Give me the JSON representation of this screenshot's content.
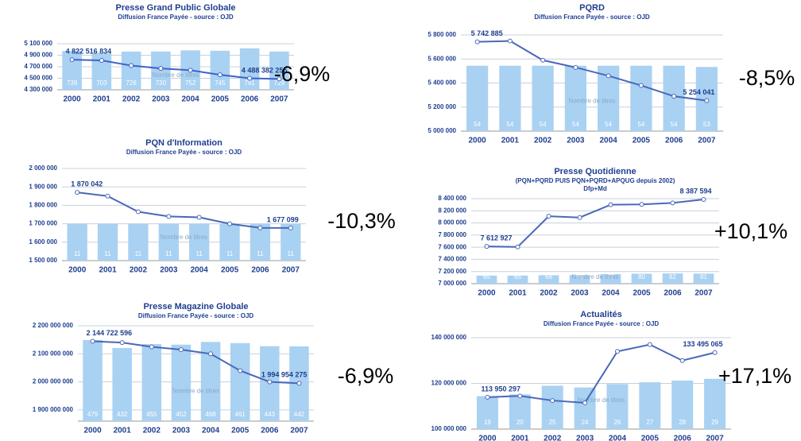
{
  "chart_data": [
    {
      "type": "bar-line",
      "title": "Presse Grand Public Globale",
      "subtitle": "Diffusion France Payée - source : OJD",
      "categories": [
        "2000",
        "2001",
        "2002",
        "2003",
        "2004",
        "2005",
        "2006",
        "2007"
      ],
      "series": [
        {
          "name": "Nombre de titres",
          "color": "#a9d1f2",
          "values": [
            739,
            703,
            728,
            730,
            752,
            745,
            791,
            729
          ]
        },
        {
          "color": "#3e63c8",
          "values": [
            4822516,
            4810000,
            4720000,
            4670000,
            4640000,
            4560000,
            4500000,
            4488382
          ]
        }
      ],
      "annotations": [
        "4 822 516 834",
        "4 488 382 255"
      ],
      "change": "-6,9%",
      "ylim": [
        4300000,
        5100000
      ],
      "yticks": [
        {
          "value": 4300000,
          "label": "4 300 000"
        },
        {
          "value": 4500000,
          "label": "4 500 000"
        },
        {
          "value": 4700000,
          "label": "4 700 000"
        },
        {
          "value": 4900000,
          "label": "4 900 000"
        },
        {
          "value": 5100000,
          "label": "5 100 000"
        }
      ],
      "grid": true
    },
    {
      "type": "bar-line",
      "title": "PQRD",
      "subtitle": "Diffusion France Payée - source : OJD",
      "categories": [
        "2000",
        "2001",
        "2002",
        "2003",
        "2004",
        "2005",
        "2006",
        "2007"
      ],
      "series": [
        {
          "name": "Nombre de titres",
          "color": "#a9d1f2",
          "values": [
            54,
            54,
            54,
            54,
            54,
            54,
            54,
            53
          ]
        },
        {
          "color": "#4a68b8",
          "values": [
            5742885,
            5750000,
            5590000,
            5530000,
            5460000,
            5380000,
            5290000,
            5254041
          ]
        }
      ],
      "annotations": [
        "5 742 885",
        "5 254 041"
      ],
      "change": "-8,5%",
      "ylim": [
        5000000,
        5800000
      ],
      "yticks": [
        {
          "value": 5000000,
          "label": "5 000 000"
        },
        {
          "value": 5200000,
          "label": "5 200 000"
        },
        {
          "value": 5400000,
          "label": "5 400 000"
        },
        {
          "value": 5600000,
          "label": "5 600 000"
        },
        {
          "value": 5800000,
          "label": "5 800 000"
        }
      ],
      "grid": true
    },
    {
      "type": "bar-line",
      "title": "PQN d'Information",
      "subtitle": "Diffusion France Payée - source : OJD",
      "categories": [
        "2000",
        "2001",
        "2002",
        "2003",
        "2004",
        "2005",
        "2006",
        "2007"
      ],
      "series": [
        {
          "name": "Nombre de titres",
          "color": "#a9d1f2",
          "values": [
            11,
            11,
            11,
            11,
            11,
            11,
            11,
            11
          ]
        },
        {
          "color": "#4a68b8",
          "values": [
            1870042,
            1850000,
            1765000,
            1740000,
            1735000,
            1700000,
            1678000,
            1677099
          ]
        }
      ],
      "annotations": [
        "1 870 042",
        "1 677 099"
      ],
      "change": "-10,3%",
      "ylim": [
        1500000,
        2000000
      ],
      "yticks": [
        {
          "value": 1500000,
          "label": "1 500 000"
        },
        {
          "value": 1600000,
          "label": "1 600 000"
        },
        {
          "value": 1700000,
          "label": "1 700 000"
        },
        {
          "value": 1800000,
          "label": "1 800 000"
        },
        {
          "value": 1900000,
          "label": "1 900 000"
        },
        {
          "value": 2000000,
          "label": "2 000 000"
        }
      ],
      "grid": true
    },
    {
      "type": "bar-line",
      "title": "Presse Quotidienne",
      "subtitle": "(PQN+PQRD PUIS PQN+PQRD+APQUG depuis 2002)",
      "note": "Dfp+Md",
      "categories": [
        "2000",
        "2001",
        "2002",
        "2003",
        "2004",
        "2005",
        "2006",
        "2007"
      ],
      "series": [
        {
          "name": "Nombre de titres",
          "color": "#a9d1f2",
          "values": [
            65,
            65,
            68,
            69,
            77,
            80,
            82,
            81
          ]
        },
        {
          "color": "#4a68b8",
          "values": [
            7612927,
            7605000,
            8110000,
            8090000,
            8300000,
            8305000,
            8330000,
            8387594
          ]
        }
      ],
      "annotations": [
        "7 612 927",
        "8 387 594"
      ],
      "change": "+10,1%",
      "ylim": [
        7000000,
        8400000
      ],
      "yticks": [
        {
          "value": 7000000,
          "label": "7 000 000"
        },
        {
          "value": 7200000,
          "label": "7 200 000"
        },
        {
          "value": 7400000,
          "label": "7 400 000"
        },
        {
          "value": 7600000,
          "label": "7 600 000"
        },
        {
          "value": 7800000,
          "label": "7 800 000"
        },
        {
          "value": 8000000,
          "label": "8 000 000"
        },
        {
          "value": 8200000,
          "label": "8 200 000"
        },
        {
          "value": 8400000,
          "label": "8 400 000"
        }
      ],
      "grid": true
    },
    {
      "type": "bar-line",
      "title": "Presse Magazine Globale",
      "subtitle": "Diffusion France Payée - source : OJD",
      "categories": [
        "2000",
        "2001",
        "2002",
        "2003",
        "2004",
        "2005",
        "2006",
        "2007"
      ],
      "series": [
        {
          "name": "Nombre de titres",
          "color": "#a9d1f2",
          "values": [
            479,
            432,
            455,
            452,
            468,
            461,
            443,
            442
          ]
        },
        {
          "color": "#4a68b8",
          "values": [
            2144722596,
            2140000000,
            2125000000,
            2115000000,
            2100000000,
            2040000000,
            2000000000,
            1994954275
          ]
        }
      ],
      "annotations": [
        "2 144 722 596",
        "1 994 954 275"
      ],
      "change": "-6,9%",
      "ylim": [
        1860000000,
        2200000000
      ],
      "yticks": [
        {
          "value": 1900000000,
          "label": "1 900 000 000"
        },
        {
          "value": 2000000000,
          "label": "2 000 000 000"
        },
        {
          "value": 2100000000,
          "label": "2 100 000 000"
        },
        {
          "value": 2200000000,
          "label": "2 200 000 000"
        }
      ],
      "grid": true
    },
    {
      "type": "bar-line",
      "title": "Actualités",
      "subtitle": "Diffusion France Payée - source : OJD",
      "categories": [
        "2000",
        "2001",
        "2002",
        "2003",
        "2004",
        "2005",
        "2006",
        "2007"
      ],
      "series": [
        {
          "name": "Nombre de titres",
          "color": "#a9d1f2",
          "values": [
            19,
            20,
            25,
            24,
            26,
            27,
            28,
            29
          ]
        },
        {
          "color": "#4a68b8",
          "values": [
            113950297,
            114500000,
            112500000,
            111500000,
            134000000,
            137000000,
            130000000,
            133495065
          ]
        }
      ],
      "annotations": [
        "113 950 297",
        "133 495 065"
      ],
      "change": "+17,1%",
      "ylim": [
        100000000,
        140000000
      ],
      "yticks": [
        {
          "value": 100000000,
          "label": "100 000 000"
        },
        {
          "value": 120000000,
          "label": "120 000 000"
        },
        {
          "value": 140000000,
          "label": "140 000 000"
        }
      ],
      "grid": true
    }
  ]
}
